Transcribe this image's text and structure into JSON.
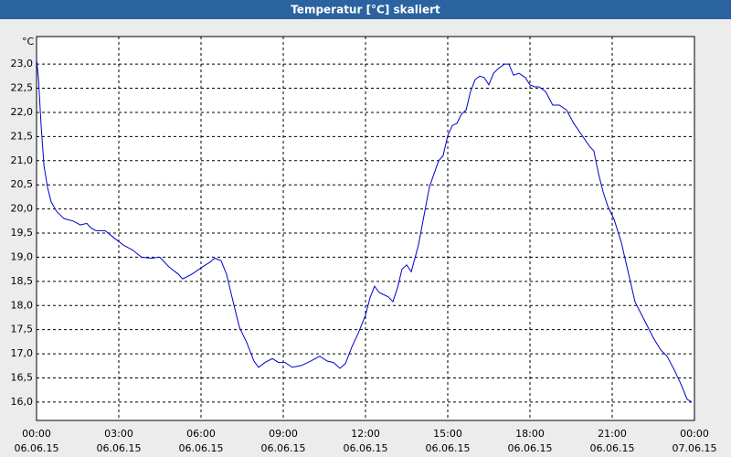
{
  "chart_data": {
    "type": "line",
    "title": "Temperatur [°C] skaliert",
    "y_unit": "°C",
    "x": [
      0,
      0.07,
      0.17,
      0.27,
      0.4,
      0.53,
      0.73,
      1,
      1.33,
      1.6,
      1.83,
      2,
      2.17,
      2.5,
      2.83,
      3.17,
      3.5,
      3.83,
      4.17,
      4.5,
      4.83,
      5.17,
      5.33,
      5.67,
      6,
      6.33,
      6.5,
      6.73,
      6.93,
      7.17,
      7.4,
      7.67,
      7.93,
      8.1,
      8.33,
      8.6,
      8.83,
      9.07,
      9.33,
      9.67,
      10,
      10.33,
      10.6,
      10.83,
      11.07,
      11.27,
      11.5,
      11.73,
      12,
      12.17,
      12.33,
      12.5,
      12.83,
      13,
      13.17,
      13.33,
      13.5,
      13.67,
      13.93,
      14.17,
      14.33,
      14.5,
      14.67,
      14.83,
      15,
      15.17,
      15.33,
      15.5,
      15.67,
      15.83,
      16,
      16.17,
      16.33,
      16.5,
      16.67,
      16.83,
      17.07,
      17.23,
      17.4,
      17.6,
      17.83,
      18,
      18.17,
      18.33,
      18.57,
      18.83,
      19.07,
      19.33,
      19.6,
      19.83,
      20.17,
      20.33,
      20.5,
      20.67,
      20.83,
      21.07,
      21.33,
      21.6,
      21.83,
      22.17,
      22.5,
      22.77,
      23,
      23.27,
      23.5,
      23.73,
      23.9
    ],
    "series": [
      {
        "name": "Temperatur",
        "color": "#0000cc",
        "values": [
          23.1,
          22.7,
          21.7,
          20.9,
          20.45,
          20.15,
          19.95,
          19.8,
          19.75,
          19.67,
          19.7,
          19.6,
          19.55,
          19.55,
          19.4,
          19.25,
          19.15,
          19.0,
          18.98,
          19.0,
          18.8,
          18.65,
          18.55,
          18.65,
          18.78,
          18.9,
          18.98,
          18.93,
          18.65,
          18.08,
          17.55,
          17.23,
          16.85,
          16.72,
          16.82,
          16.9,
          16.82,
          16.82,
          16.72,
          16.76,
          16.85,
          16.95,
          16.85,
          16.82,
          16.7,
          16.8,
          17.14,
          17.42,
          17.8,
          18.17,
          18.4,
          18.27,
          18.18,
          18.08,
          18.37,
          18.75,
          18.84,
          18.7,
          19.25,
          19.97,
          20.45,
          20.73,
          21.0,
          21.1,
          21.52,
          21.73,
          21.77,
          21.96,
          22.05,
          22.43,
          22.68,
          22.75,
          22.72,
          22.57,
          22.81,
          22.9,
          23.0,
          23.0,
          22.77,
          22.81,
          22.72,
          22.57,
          22.53,
          22.53,
          22.43,
          22.15,
          22.15,
          22.05,
          21.77,
          21.58,
          21.3,
          21.2,
          20.73,
          20.35,
          20.07,
          19.78,
          19.31,
          18.65,
          18.08,
          17.7,
          17.33,
          17.08,
          16.95,
          16.66,
          16.38,
          16.06,
          16.0
        ]
      }
    ],
    "xlim": [
      0,
      24
    ],
    "xticks": [
      {
        "value": 0,
        "label": "00:00",
        "date": "06.06.15"
      },
      {
        "value": 3,
        "label": "03:00",
        "date": "06.06.15"
      },
      {
        "value": 6,
        "label": "06:00",
        "date": "06.06.15"
      },
      {
        "value": 9,
        "label": "09:00",
        "date": "06.06.15"
      },
      {
        "value": 12,
        "label": "12:00",
        "date": "06.06.15"
      },
      {
        "value": 15,
        "label": "15:00",
        "date": "06.06.15"
      },
      {
        "value": 18,
        "label": "18:00",
        "date": "06.06.15"
      },
      {
        "value": 21,
        "label": "21:00",
        "date": "06.06.15"
      },
      {
        "value": 24,
        "label": "00:00",
        "date": "07.06.15"
      }
    ],
    "ylim": [
      15.62,
      23.57
    ],
    "yticks": [
      {
        "value": 16,
        "label": "16,0"
      },
      {
        "value": 16.5,
        "label": "16,5"
      },
      {
        "value": 17,
        "label": "17,0"
      },
      {
        "value": 17.5,
        "label": "17,5"
      },
      {
        "value": 18,
        "label": "18,0"
      },
      {
        "value": 18.5,
        "label": "18,5"
      },
      {
        "value": 19,
        "label": "19,0"
      },
      {
        "value": 19.5,
        "label": "19,5"
      },
      {
        "value": 20,
        "label": "20,0"
      },
      {
        "value": 20.5,
        "label": "20,5"
      },
      {
        "value": 21,
        "label": "21,0"
      },
      {
        "value": 21.5,
        "label": "21,5"
      },
      {
        "value": 22,
        "label": "22,0"
      },
      {
        "value": 22.5,
        "label": "22,5"
      },
      {
        "value": 23,
        "label": "23,0"
      }
    ],
    "grid": true
  }
}
